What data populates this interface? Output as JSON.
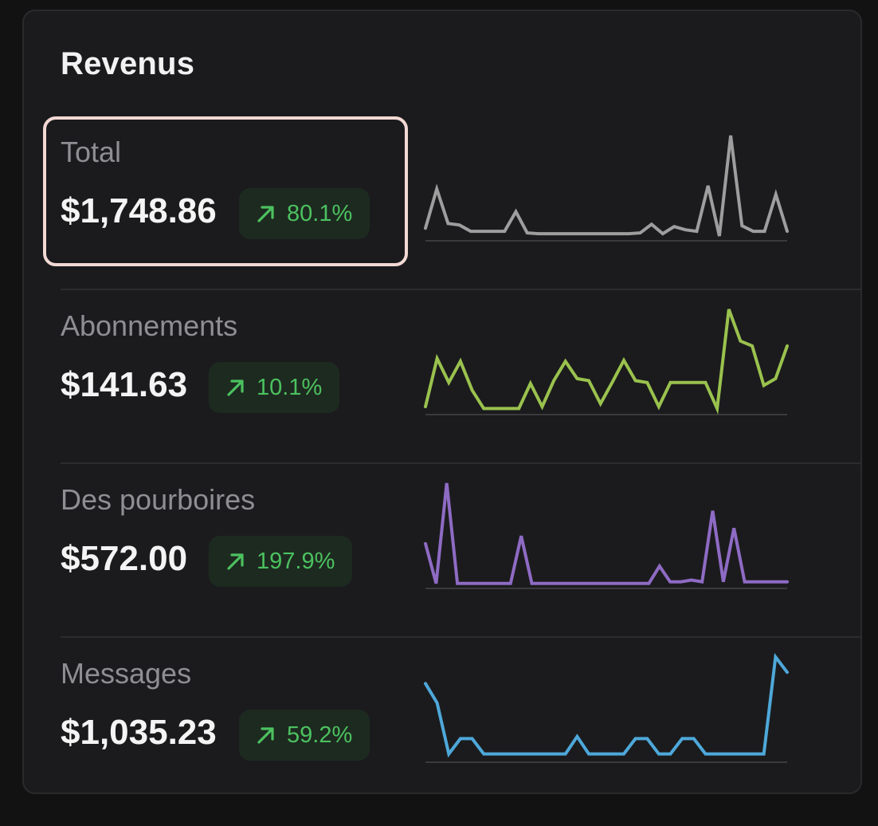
{
  "card": {
    "title": "Revenus"
  },
  "rows": [
    {
      "label": "Total",
      "amount": "$1,748.86",
      "change": "80.1%",
      "color": "#9e9e9e",
      "selected": true,
      "spark": [
        12,
        62,
        18,
        16,
        8,
        8,
        8,
        8,
        33,
        6,
        5,
        5,
        5,
        5,
        5,
        5,
        5,
        5,
        5,
        6,
        17,
        5,
        14,
        10,
        8,
        66,
        2,
        130,
        15,
        8,
        8,
        55,
        8
      ]
    },
    {
      "label": "Abonnements",
      "amount": "$141.63",
      "change": "10.1%",
      "color": "#9ac24e",
      "selected": false,
      "spark": [
        5,
        55,
        30,
        52,
        22,
        3,
        3,
        3,
        3,
        29,
        5,
        32,
        52,
        34,
        32,
        8,
        30,
        53,
        32,
        30,
        5,
        30,
        30,
        30,
        30,
        3,
        106,
        73,
        68,
        27,
        34,
        68
      ]
    },
    {
      "label": "Des pourboires",
      "amount": "$572.00",
      "change": "197.9%",
      "color": "#8e6bc4",
      "selected": false,
      "spark": [
        48,
        2,
        118,
        2,
        2,
        2,
        2,
        2,
        2,
        57,
        2,
        2,
        2,
        2,
        2,
        2,
        2,
        2,
        2,
        2,
        2,
        2,
        22,
        4,
        4,
        6,
        4,
        86,
        4,
        66,
        4,
        4,
        4,
        4,
        4
      ]
    },
    {
      "label": "Messages",
      "amount": "$1,035.23",
      "change": "59.2%",
      "color": "#4ea8da",
      "selected": false,
      "spark": [
        74,
        55,
        5,
        20,
        20,
        5,
        5,
        5,
        5,
        5,
        5,
        5,
        5,
        22,
        5,
        5,
        5,
        5,
        20,
        20,
        5,
        5,
        20,
        20,
        5,
        5,
        5,
        5,
        5,
        5,
        100,
        85
      ]
    }
  ]
}
